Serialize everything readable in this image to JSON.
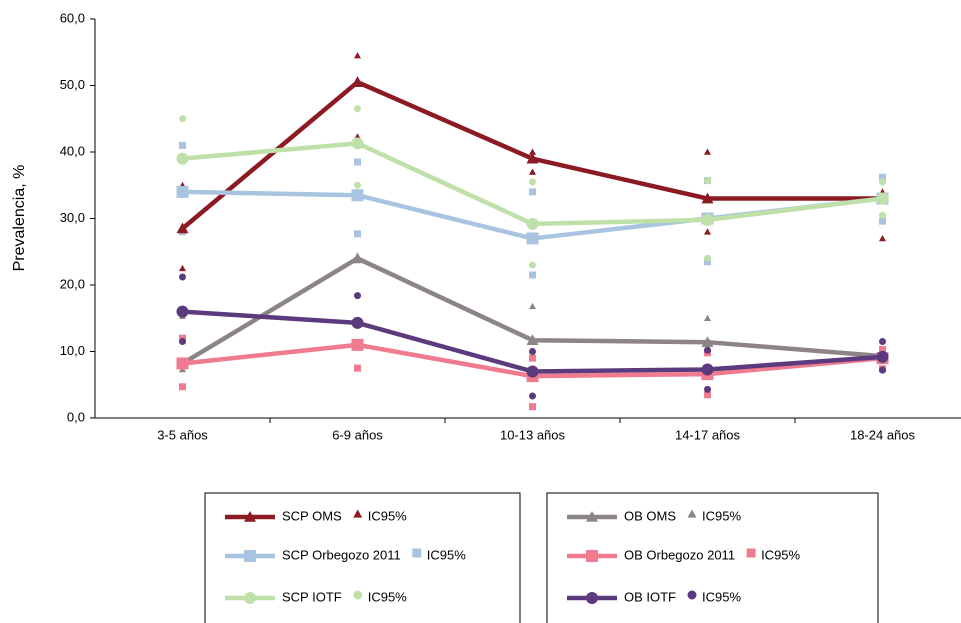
{
  "chart_data": {
    "type": "line",
    "y_label": "Prevalencia, %",
    "categories": [
      "3-5 años",
      "6-9 años",
      "10-13 años",
      "14-17 años",
      "18-24 años"
    ],
    "ylim": [
      0,
      60
    ],
    "yticks": [
      {
        "value": 0,
        "label": "0,0"
      },
      {
        "value": 10,
        "label": "10,0"
      },
      {
        "value": 20,
        "label": "20,0"
      },
      {
        "value": 30,
        "label": "30,0"
      },
      {
        "value": 40,
        "label": "40,0"
      },
      {
        "value": 50,
        "label": "50,0"
      },
      {
        "value": 60,
        "label": "60,0"
      }
    ],
    "series": [
      {
        "name": "SCP OMS",
        "ci_name": "IC95%",
        "color": "#8b1a22",
        "marker": "triangle",
        "values": [
          28.5,
          50.5,
          39,
          33,
          33
        ],
        "ci_upper": [
          35,
          54.5,
          40,
          40,
          34
        ],
        "ci_lower": [
          22.5,
          42.3,
          37,
          28,
          27
        ]
      },
      {
        "name": "SCP Orbegozo 2011",
        "ci_name": "IC95%",
        "color": "#a9c4e0",
        "marker": "square",
        "values": [
          34,
          33.5,
          27,
          30,
          33
        ],
        "ci_upper": [
          41,
          38.5,
          34,
          35.7,
          36.2
        ],
        "ci_lower": [
          28,
          27.7,
          21.5,
          23.5,
          29.6
        ]
      },
      {
        "name": "SCP IOTF",
        "ci_name": "IC95%",
        "color": "#bfe0a8",
        "marker": "circle",
        "values": [
          39,
          41.3,
          29.2,
          29.8,
          33
        ],
        "ci_upper": [
          45,
          46.5,
          35.5,
          35.7,
          35.5
        ],
        "ci_lower": [
          34,
          35,
          23,
          24,
          30.5
        ]
      },
      {
        "name": "OB OMS",
        "ci_name": "IC95%",
        "color": "#8c8486",
        "marker": "triangle",
        "values": [
          8.2,
          24,
          11.7,
          11.4,
          9.3
        ],
        "ci_upper": [
          15.3,
          24,
          16.8,
          15,
          9.6
        ],
        "ci_lower": [
          7.3,
          24,
          6.8,
          7.5,
          9
        ]
      },
      {
        "name": "OB Orbegozo 2011",
        "ci_name": "IC95%",
        "color": "#f07a8e",
        "marker": "square",
        "values": [
          8.2,
          11,
          6.3,
          6.6,
          9
        ],
        "ci_upper": [
          12,
          14.3,
          9,
          9.8,
          10.3
        ],
        "ci_lower": [
          4.7,
          7.5,
          1.7,
          3.5,
          7.4
        ]
      },
      {
        "name": "OB IOTF",
        "ci_name": "IC95%",
        "color": "#5c3a7e",
        "marker": "circle",
        "values": [
          16,
          14.3,
          7,
          7.3,
          9.2
        ],
        "ci_upper": [
          21.2,
          18.4,
          10,
          10.2,
          11.5
        ],
        "ci_lower": [
          11.5,
          10.7,
          3.3,
          4.3,
          7.2
        ]
      }
    ]
  }
}
